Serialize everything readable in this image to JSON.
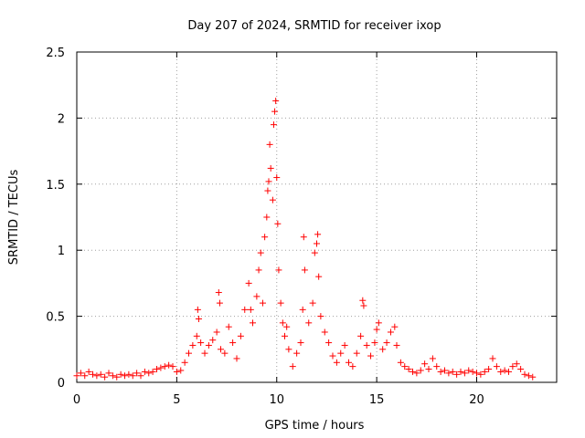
{
  "chart_data": {
    "type": "scatter",
    "title": "Day 207 of 2024, SRMTID for receiver ixop",
    "xlabel": "GPS time / hours",
    "ylabel": "SRMTID / TECUs",
    "xlim": [
      0,
      24
    ],
    "ylim": [
      0,
      2.5
    ],
    "xticks": [
      0,
      5,
      10,
      15,
      20
    ],
    "xtick_labels": [
      "0",
      "5",
      "10",
      "15",
      "20"
    ],
    "yticks": [
      0,
      0.5,
      1,
      1.5,
      2,
      2.5
    ],
    "ytick_labels": [
      "0",
      "0.5",
      "1",
      "1.5",
      "2",
      "2.5"
    ],
    "grid": true,
    "marker": "plus",
    "series": [
      {
        "name": "SRMTID",
        "color": "#ff0000",
        "points": [
          [
            0.0,
            0.05
          ],
          [
            0.2,
            0.07
          ],
          [
            0.4,
            0.05
          ],
          [
            0.6,
            0.08
          ],
          [
            0.8,
            0.06
          ],
          [
            1.0,
            0.05
          ],
          [
            1.2,
            0.06
          ],
          [
            1.4,
            0.04
          ],
          [
            1.6,
            0.07
          ],
          [
            1.8,
            0.05
          ],
          [
            2.0,
            0.04
          ],
          [
            2.2,
            0.06
          ],
          [
            2.4,
            0.05
          ],
          [
            2.6,
            0.06
          ],
          [
            2.8,
            0.05
          ],
          [
            3.0,
            0.07
          ],
          [
            3.2,
            0.05
          ],
          [
            3.4,
            0.08
          ],
          [
            3.6,
            0.07
          ],
          [
            3.8,
            0.08
          ],
          [
            4.0,
            0.1
          ],
          [
            4.2,
            0.11
          ],
          [
            4.4,
            0.12
          ],
          [
            4.6,
            0.13
          ],
          [
            4.8,
            0.12
          ],
          [
            5.0,
            0.08
          ],
          [
            5.2,
            0.09
          ],
          [
            5.4,
            0.15
          ],
          [
            5.6,
            0.22
          ],
          [
            5.8,
            0.28
          ],
          [
            6.0,
            0.35
          ],
          [
            6.05,
            0.55
          ],
          [
            6.1,
            0.48
          ],
          [
            6.2,
            0.3
          ],
          [
            6.4,
            0.22
          ],
          [
            6.6,
            0.28
          ],
          [
            6.8,
            0.32
          ],
          [
            7.0,
            0.38
          ],
          [
            7.1,
            0.68
          ],
          [
            7.15,
            0.6
          ],
          [
            7.2,
            0.25
          ],
          [
            7.4,
            0.22
          ],
          [
            7.6,
            0.42
          ],
          [
            7.8,
            0.3
          ],
          [
            8.0,
            0.18
          ],
          [
            8.2,
            0.35
          ],
          [
            8.4,
            0.55
          ],
          [
            8.6,
            0.75
          ],
          [
            8.7,
            0.55
          ],
          [
            8.8,
            0.45
          ],
          [
            9.0,
            0.65
          ],
          [
            9.1,
            0.85
          ],
          [
            9.2,
            0.98
          ],
          [
            9.3,
            0.6
          ],
          [
            9.4,
            1.1
          ],
          [
            9.5,
            1.25
          ],
          [
            9.55,
            1.45
          ],
          [
            9.6,
            1.52
          ],
          [
            9.65,
            1.8
          ],
          [
            9.7,
            1.62
          ],
          [
            9.8,
            1.38
          ],
          [
            9.85,
            1.95
          ],
          [
            9.9,
            2.05
          ],
          [
            9.95,
            2.13
          ],
          [
            10.0,
            1.55
          ],
          [
            10.05,
            1.2
          ],
          [
            10.1,
            0.85
          ],
          [
            10.2,
            0.6
          ],
          [
            10.3,
            0.45
          ],
          [
            10.4,
            0.35
          ],
          [
            10.5,
            0.42
          ],
          [
            10.6,
            0.25
          ],
          [
            10.8,
            0.12
          ],
          [
            11.0,
            0.22
          ],
          [
            11.2,
            0.3
          ],
          [
            11.3,
            0.55
          ],
          [
            11.35,
            1.1
          ],
          [
            11.4,
            0.85
          ],
          [
            11.6,
            0.45
          ],
          [
            11.8,
            0.6
          ],
          [
            11.9,
            0.98
          ],
          [
            12.0,
            1.05
          ],
          [
            12.05,
            1.12
          ],
          [
            12.1,
            0.8
          ],
          [
            12.2,
            0.5
          ],
          [
            12.4,
            0.38
          ],
          [
            12.6,
            0.3
          ],
          [
            12.8,
            0.2
          ],
          [
            13.0,
            0.15
          ],
          [
            13.2,
            0.22
          ],
          [
            13.4,
            0.28
          ],
          [
            13.6,
            0.15
          ],
          [
            13.8,
            0.12
          ],
          [
            14.0,
            0.22
          ],
          [
            14.2,
            0.35
          ],
          [
            14.3,
            0.62
          ],
          [
            14.35,
            0.58
          ],
          [
            14.5,
            0.28
          ],
          [
            14.7,
            0.2
          ],
          [
            14.9,
            0.3
          ],
          [
            15.0,
            0.4
          ],
          [
            15.1,
            0.45
          ],
          [
            15.3,
            0.25
          ],
          [
            15.5,
            0.3
          ],
          [
            15.7,
            0.38
          ],
          [
            15.9,
            0.42
          ],
          [
            16.0,
            0.28
          ],
          [
            16.2,
            0.15
          ],
          [
            16.4,
            0.12
          ],
          [
            16.6,
            0.1
          ],
          [
            16.8,
            0.08
          ],
          [
            17.0,
            0.07
          ],
          [
            17.2,
            0.09
          ],
          [
            17.4,
            0.14
          ],
          [
            17.6,
            0.1
          ],
          [
            17.8,
            0.18
          ],
          [
            18.0,
            0.12
          ],
          [
            18.2,
            0.08
          ],
          [
            18.4,
            0.09
          ],
          [
            18.6,
            0.07
          ],
          [
            18.8,
            0.08
          ],
          [
            19.0,
            0.06
          ],
          [
            19.2,
            0.08
          ],
          [
            19.4,
            0.07
          ],
          [
            19.6,
            0.09
          ],
          [
            19.8,
            0.08
          ],
          [
            20.0,
            0.07
          ],
          [
            20.2,
            0.06
          ],
          [
            20.4,
            0.08
          ],
          [
            20.6,
            0.1
          ],
          [
            20.8,
            0.18
          ],
          [
            21.0,
            0.12
          ],
          [
            21.2,
            0.08
          ],
          [
            21.4,
            0.09
          ],
          [
            21.6,
            0.08
          ],
          [
            21.8,
            0.12
          ],
          [
            22.0,
            0.14
          ],
          [
            22.2,
            0.1
          ],
          [
            22.4,
            0.06
          ],
          [
            22.6,
            0.05
          ],
          [
            22.8,
            0.04
          ]
        ]
      }
    ]
  }
}
